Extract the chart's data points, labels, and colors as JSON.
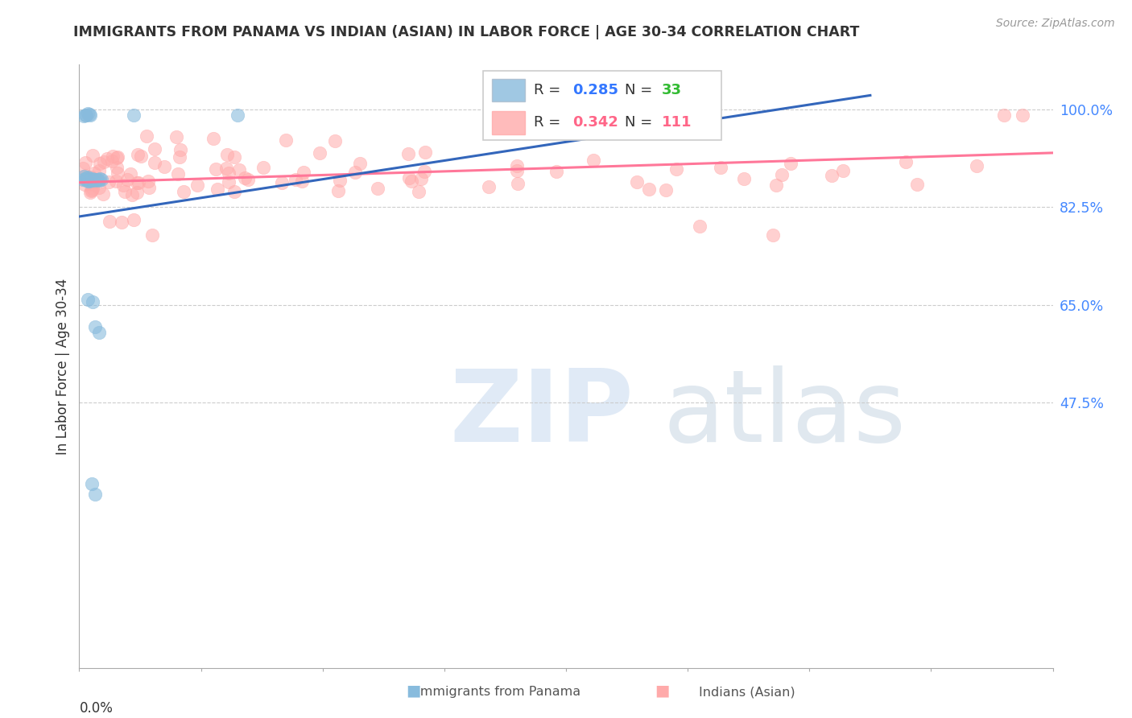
{
  "title": "IMMIGRANTS FROM PANAMA VS INDIAN (ASIAN) IN LABOR FORCE | AGE 30-34 CORRELATION CHART",
  "source": "Source: ZipAtlas.com",
  "ylabel": "In Labor Force | Age 30-34",
  "xlim": [
    0.0,
    0.8
  ],
  "ylim": [
    0.0,
    1.08
  ],
  "ytick_positions": [
    1.0,
    0.825,
    0.65,
    0.475
  ],
  "ytick_labels": [
    "100.0%",
    "82.5%",
    "65.0%",
    "47.5%"
  ],
  "legend_blue_R": "0.285",
  "legend_blue_N": "33",
  "legend_pink_R": "0.342",
  "legend_pink_N": "111",
  "blue_color": "#88BBDD",
  "pink_color": "#FFAAAA",
  "blue_line_color": "#3366BB",
  "pink_line_color": "#FF7799",
  "blue_line_x": [
    0.0,
    0.65
  ],
  "blue_line_y": [
    0.808,
    1.025
  ],
  "pink_line_x": [
    0.0,
    0.8
  ],
  "pink_line_y": [
    0.869,
    0.922
  ],
  "tick_color": "#4488FF",
  "axis_color": "#AAAAAA",
  "grid_color": "#CCCCCC",
  "title_color": "#333333",
  "source_color": "#999999"
}
